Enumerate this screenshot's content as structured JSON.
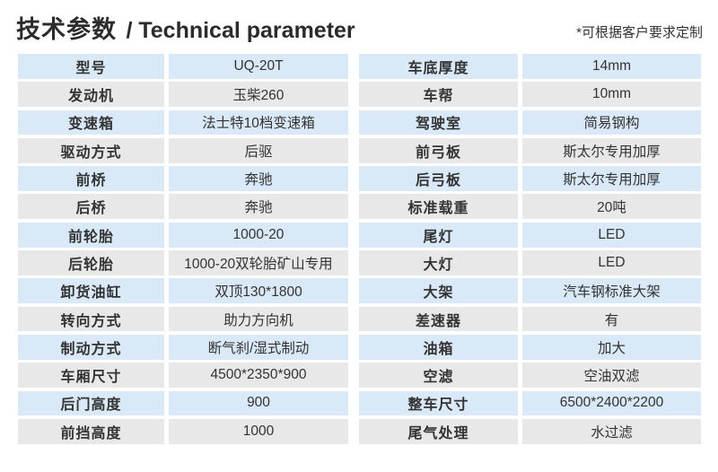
{
  "header": {
    "title_zh": "技术参数",
    "title_en": "/ Technical parameter",
    "note": "*可根据客户要求定制"
  },
  "colors": {
    "row_blue": "#d9e9f7",
    "row_gray": "#e8e8e8",
    "text": "#333333"
  },
  "tables": {
    "left": {
      "rows": [
        {
          "label": "型号",
          "value": "UQ-20T"
        },
        {
          "label": "发动机",
          "value": "玉柴260"
        },
        {
          "label": "变速箱",
          "value": "法士特10档变速箱"
        },
        {
          "label": "驱动方式",
          "value": "后驱"
        },
        {
          "label": "前桥",
          "value": "奔驰"
        },
        {
          "label": "后桥",
          "value": "奔驰"
        },
        {
          "label": "前轮胎",
          "value": "1000-20"
        },
        {
          "label": "后轮胎",
          "value": "1000-20双轮胎矿山专用"
        },
        {
          "label": "卸货油缸",
          "value": "双顶130*1800"
        },
        {
          "label": "转向方式",
          "value": "助力方向机"
        },
        {
          "label": "制动方式",
          "value": "断气刹/湿式制动"
        },
        {
          "label": "车厢尺寸",
          "value": "4500*2350*900"
        },
        {
          "label": "后门高度",
          "value": "900"
        },
        {
          "label": "前挡高度",
          "value": "1000"
        }
      ]
    },
    "right": {
      "rows": [
        {
          "label": "车底厚度",
          "value": "14mm"
        },
        {
          "label": "车帮",
          "value": "10mm"
        },
        {
          "label": "驾驶室",
          "value": "简易钢构"
        },
        {
          "label": "前弓板",
          "value": "斯太尔专用加厚"
        },
        {
          "label": "后弓板",
          "value": "斯太尔专用加厚"
        },
        {
          "label": "标准载重",
          "value": "20吨"
        },
        {
          "label": "尾灯",
          "value": "LED"
        },
        {
          "label": "大灯",
          "value": "LED"
        },
        {
          "label": "大架",
          "value": "汽车钢标准大架"
        },
        {
          "label": "差速器",
          "value": "有"
        },
        {
          "label": "油箱",
          "value": "加大"
        },
        {
          "label": "空滤",
          "value": "空油双滤"
        },
        {
          "label": "整车尺寸",
          "value": "6500*2400*2200"
        },
        {
          "label": "尾气处理",
          "value": "水过滤"
        }
      ]
    }
  }
}
